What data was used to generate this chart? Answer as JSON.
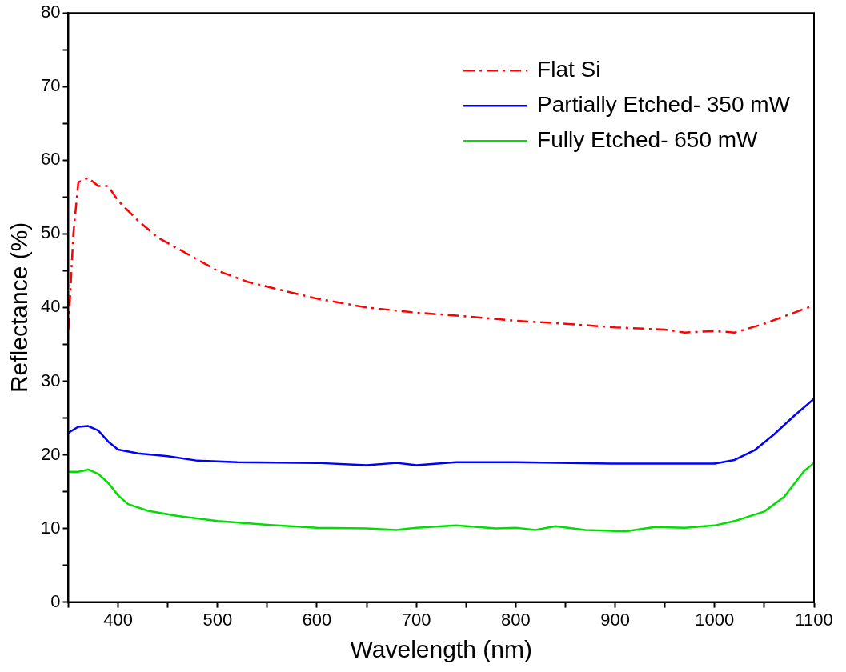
{
  "chart_data": {
    "type": "line",
    "xlabel": "Wavelength (nm)",
    "ylabel": "Reflectance (%)",
    "xlim": [
      350,
      1100
    ],
    "ylim": [
      0,
      80
    ],
    "xticks": [
      {
        "value": 350,
        "label": null
      },
      400,
      {
        "value": 450,
        "label": null
      },
      500,
      {
        "value": 550,
        "label": null
      },
      600,
      {
        "value": 650,
        "label": null
      },
      700,
      {
        "value": 750,
        "label": null
      },
      800,
      {
        "value": 850,
        "label": null
      },
      900,
      {
        "value": 950,
        "label": null
      },
      1000,
      {
        "value": 1050,
        "label": null
      },
      1100
    ],
    "yticks": [
      0,
      {
        "value": 5,
        "label": null
      },
      10,
      {
        "value": 15,
        "label": null
      },
      20,
      {
        "value": 25,
        "label": null
      },
      30,
      {
        "value": 35,
        "label": null
      },
      40,
      {
        "value": 45,
        "label": null
      },
      50,
      {
        "value": 55,
        "label": null
      },
      60,
      {
        "value": 65,
        "label": null
      },
      70,
      {
        "value": 75,
        "label": null
      },
      80
    ],
    "grid": false,
    "legend": "top right",
    "marker": "none",
    "series": [
      {
        "name": "Flat Si",
        "color": "#ff0000",
        "line_style": "dashed",
        "x": [
          350,
          355,
          360,
          370,
          380,
          390,
          400,
          420,
          440,
          460,
          480,
          500,
          530,
          560,
          600,
          650,
          700,
          750,
          800,
          850,
          900,
          950,
          970,
          1000,
          1020,
          1050,
          1080,
          1100
        ],
        "values": [
          37,
          50,
          57,
          57.6,
          56.5,
          56.5,
          54.5,
          51.8,
          49.5,
          48,
          46.5,
          45,
          43.5,
          42.5,
          41.2,
          40,
          39.3,
          38.8,
          38.2,
          37.8,
          37.3,
          37,
          36.6,
          36.8,
          36.6,
          37.8,
          39.3,
          40.3
        ]
      },
      {
        "name": "Partially Etched- 350 mW",
        "color": "#0000ff",
        "line_style": "solid",
        "x": [
          350,
          360,
          370,
          380,
          390,
          400,
          420,
          450,
          480,
          520,
          600,
          650,
          680,
          700,
          740,
          800,
          900,
          1000,
          1020,
          1040,
          1060,
          1080,
          1100
        ],
        "values": [
          23,
          23.8,
          23.9,
          23.3,
          21.8,
          20.7,
          20.2,
          19.8,
          19.2,
          19,
          18.9,
          18.6,
          18.9,
          18.6,
          19,
          19,
          18.8,
          18.8,
          19.3,
          20.6,
          22.8,
          25.3,
          27.6
        ]
      },
      {
        "name": "Fully Etched- 650 mW",
        "color": "#00dd00",
        "line_style": "solid",
        "x": [
          350,
          360,
          370,
          380,
          390,
          400,
          410,
          430,
          460,
          500,
          550,
          600,
          650,
          680,
          700,
          740,
          780,
          800,
          820,
          840,
          870,
          910,
          940,
          970,
          1000,
          1020,
          1050,
          1070,
          1090,
          1100
        ],
        "values": [
          17.7,
          17.7,
          18,
          17.4,
          16.2,
          14.5,
          13.3,
          12.4,
          11.7,
          11,
          10.5,
          10.1,
          10,
          9.8,
          10.1,
          10.4,
          10,
          10.1,
          9.8,
          10.3,
          9.8,
          9.6,
          10.2,
          10.1,
          10.4,
          11,
          12.3,
          14.3,
          17.8,
          18.9
        ]
      }
    ]
  }
}
